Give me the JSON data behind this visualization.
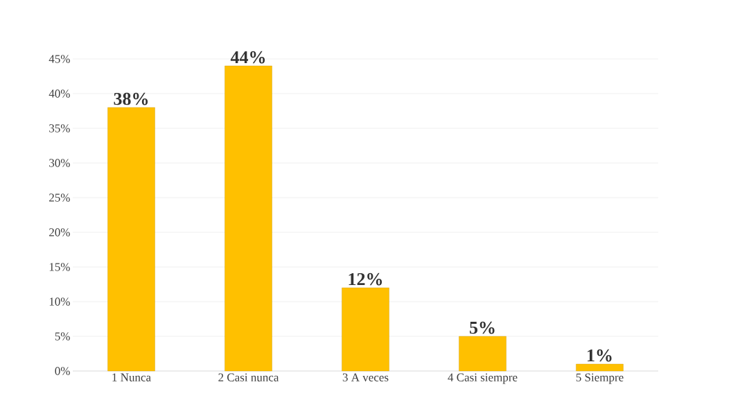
{
  "chart_data": {
    "type": "bar",
    "categories": [
      "1 Nunca",
      "2 Casi nunca",
      "3 A veces",
      "4 Casi siempre",
      "5 Siempre"
    ],
    "values": [
      38,
      44,
      12,
      5,
      1
    ],
    "value_labels": [
      "38%",
      "44%",
      "12%",
      "5%",
      "1%"
    ],
    "color": "#ffc000",
    "ylim": [
      0,
      45
    ],
    "yticks": [
      {
        "value": 0,
        "label": "0%"
      },
      {
        "value": 5,
        "label": "5%"
      },
      {
        "value": 10,
        "label": "10%"
      },
      {
        "value": 15,
        "label": "15%"
      },
      {
        "value": 20,
        "label": "20%"
      },
      {
        "value": 25,
        "label": "25%"
      },
      {
        "value": 30,
        "label": "30%"
      },
      {
        "value": 35,
        "label": "35%"
      },
      {
        "value": 40,
        "label": "40%"
      },
      {
        "value": 45,
        "label": "45%"
      }
    ],
    "grid": "y"
  }
}
